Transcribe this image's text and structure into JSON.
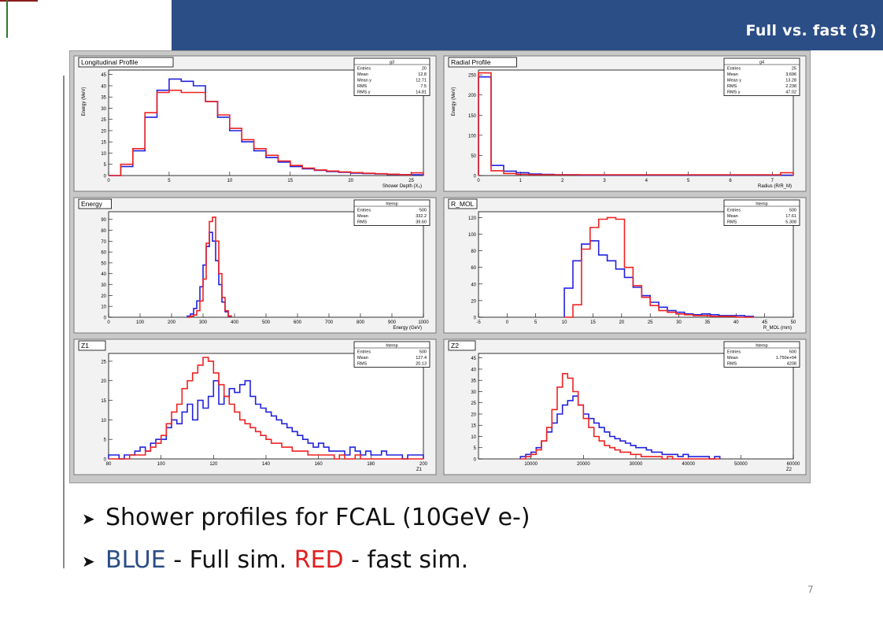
{
  "header": {
    "title": "Full vs. fast (3)"
  },
  "bullets": [
    {
      "text": "Shower profiles for FCAL (10GeV e-)"
    },
    {
      "parts": [
        {
          "text": "BLUE",
          "style": "blue"
        },
        {
          "text": " - Full sim. ",
          "style": "plain"
        },
        {
          "text": "RED",
          "style": "red"
        },
        {
          "text": " - fast sim.",
          "style": "plain"
        }
      ]
    }
  ],
  "slide_number": "7",
  "colors": {
    "full_sim": "#2222dd",
    "fast_sim": "#ee2222",
    "header": "#2b4e86"
  },
  "chart_data": [
    {
      "type": "line",
      "title": "Longitudinal Profile",
      "xlabel": "Shower Depth (X₀)",
      "ylabel": "Energy (MeV)",
      "xlim": [
        0,
        26
      ],
      "ylim": [
        0,
        47
      ],
      "xticks": [
        0,
        5,
        10,
        15,
        20,
        25
      ],
      "yticks": [
        0,
        5,
        10,
        15,
        20,
        25,
        30,
        35,
        40,
        45
      ],
      "stats": {
        "name": "g3",
        "rows": [
          [
            "Entries",
            "20"
          ],
          [
            "Mean",
            "12.8"
          ],
          [
            "Mean y",
            "12.71"
          ],
          [
            "RMS",
            "7.5"
          ],
          [
            "RMS y",
            "14.81"
          ]
        ]
      },
      "x_edges": [
        0,
        1,
        2,
        3,
        4,
        5,
        6,
        7,
        8,
        9,
        10,
        11,
        12,
        13,
        14,
        15,
        16,
        17,
        18,
        19,
        20,
        21,
        22,
        23,
        24,
        25,
        26
      ],
      "series": [
        {
          "name": "Full sim",
          "color": "#2222dd",
          "values": [
            0,
            4,
            11,
            26,
            38,
            43,
            42,
            40,
            33,
            26,
            20,
            15,
            11,
            8,
            6,
            4,
            3,
            2.3,
            1.8,
            1.4,
            1.1,
            0.9,
            0.7,
            0.5,
            0.4,
            0.3
          ]
        },
        {
          "name": "Fast sim",
          "color": "#ee2222",
          "values": [
            0,
            5,
            12,
            28,
            37,
            38,
            37,
            37,
            33,
            27,
            21,
            16,
            12,
            9,
            6.5,
            4.5,
            3.3,
            2.5,
            2,
            1.6,
            1.3,
            1,
            0.8,
            0.6,
            0.4,
            1.2
          ]
        }
      ]
    },
    {
      "type": "line",
      "title": "Radial Profile",
      "xlabel": "Radius (R/R_M)",
      "ylabel": "Energy (MeV)",
      "xlim": [
        0,
        7.5
      ],
      "ylim": [
        0,
        262
      ],
      "xticks": [
        0,
        1,
        2,
        3,
        4,
        5,
        6,
        7
      ],
      "yticks": [
        0,
        50,
        100,
        150,
        200,
        250
      ],
      "stats": {
        "name": "g4",
        "rows": [
          [
            "Entries",
            "25"
          ],
          [
            "Mean",
            "3.696"
          ],
          [
            "Mean y",
            "13.28"
          ],
          [
            "RMS",
            "2.238"
          ],
          [
            "RMS y",
            "47.02"
          ]
        ]
      },
      "x_edges": [
        0,
        0.3,
        0.6,
        0.9,
        1.2,
        1.5,
        1.8,
        2.1,
        2.4,
        2.7,
        3.0,
        3.3,
        3.6,
        3.9,
        4.2,
        4.5,
        4.8,
        5.1,
        5.4,
        5.7,
        6.0,
        6.3,
        6.6,
        6.9,
        7.2,
        7.5
      ],
      "series": [
        {
          "name": "Full sim",
          "color": "#2222dd",
          "values": [
            245,
            25,
            11,
            7,
            4,
            3,
            2,
            2,
            1,
            1,
            1,
            1,
            1,
            1,
            1,
            1,
            1,
            1,
            1,
            1,
            1,
            1,
            1,
            1,
            1
          ]
        },
        {
          "name": "Fast sim",
          "color": "#ee2222",
          "values": [
            255,
            12,
            5,
            3,
            2,
            2,
            2,
            2,
            2,
            2,
            2,
            2,
            2,
            2,
            2,
            2,
            2,
            2,
            2,
            2,
            2,
            2,
            2,
            2,
            7
          ]
        }
      ]
    },
    {
      "type": "line",
      "title": "Energy",
      "xlabel": "Energy (GeV)",
      "ylabel": "",
      "xlim": [
        0,
        1000
      ],
      "ylim": [
        0,
        97
      ],
      "xticks": [
        0,
        100,
        200,
        300,
        400,
        500,
        600,
        700,
        800,
        900,
        1000
      ],
      "yticks": [
        0,
        10,
        20,
        30,
        40,
        50,
        60,
        70,
        80,
        90
      ],
      "stats": {
        "name": "htemp",
        "rows": [
          [
            "Entries",
            "500"
          ],
          [
            "Mean",
            "332.2"
          ],
          [
            "RMS",
            "39.60"
          ]
        ]
      },
      "x_edges": [
        250,
        260,
        270,
        280,
        290,
        300,
        310,
        320,
        330,
        340,
        350,
        360,
        370,
        380,
        390
      ],
      "series": [
        {
          "name": "Full sim",
          "color": "#2222dd",
          "values": [
            1,
            3,
            8,
            15,
            28,
            48,
            65,
            78,
            70,
            52,
            30,
            14,
            5,
            1
          ]
        },
        {
          "name": "Fast sim",
          "color": "#ee2222",
          "values": [
            0,
            1,
            2,
            6,
            15,
            35,
            68,
            88,
            92,
            70,
            40,
            18,
            6,
            1
          ]
        }
      ]
    },
    {
      "type": "line",
      "title": "R_MOL",
      "xlabel": "R_MOL (mm)",
      "ylabel": "",
      "xlim": [
        -5,
        50
      ],
      "ylim": [
        0,
        127
      ],
      "xticks": [
        -5,
        0,
        5,
        10,
        15,
        20,
        25,
        30,
        35,
        40,
        45,
        50
      ],
      "yticks": [
        0,
        20,
        40,
        60,
        80,
        100,
        120
      ],
      "stats": {
        "name": "htemp",
        "rows": [
          [
            "Entries",
            "500"
          ],
          [
            "Mean",
            "17.61"
          ],
          [
            "RMS",
            "5.308"
          ]
        ]
      },
      "x_edges": [
        10,
        11.5,
        13,
        14.5,
        16,
        17.5,
        19,
        20.5,
        22,
        23.5,
        25,
        26.5,
        28,
        29.5,
        31,
        32.5,
        34,
        35.5,
        37,
        38.5,
        40,
        41.5,
        43
      ],
      "series": [
        {
          "name": "Full sim",
          "color": "#2222dd",
          "values": [
            35,
            68,
            88,
            92,
            75,
            68,
            58,
            48,
            36,
            26,
            18,
            12,
            8,
            6,
            4,
            3,
            4,
            3,
            2,
            2,
            2,
            1
          ]
        },
        {
          "name": "Fast sim",
          "color": "#ee2222",
          "values": [
            0,
            15,
            82,
            108,
            118,
            120,
            118,
            60,
            38,
            24,
            14,
            8,
            6,
            4,
            3,
            2,
            2,
            1,
            1,
            1,
            0,
            0
          ]
        }
      ]
    },
    {
      "type": "line",
      "title": "Z1",
      "xlabel": "Z1",
      "ylabel": "",
      "xlim": [
        80,
        200
      ],
      "ylim": [
        0,
        27
      ],
      "xticks": [
        80,
        100,
        120,
        140,
        160,
        180,
        200
      ],
      "yticks": [
        0,
        5,
        10,
        15,
        20,
        25
      ],
      "stats": {
        "name": "htemp",
        "rows": [
          [
            "Entries",
            "500"
          ],
          [
            "Mean",
            "127.4"
          ],
          [
            "RMS",
            "20.13"
          ]
        ]
      },
      "x_edges": [
        80,
        82,
        84,
        86,
        88,
        90,
        92,
        94,
        96,
        98,
        100,
        102,
        104,
        106,
        108,
        110,
        112,
        114,
        116,
        118,
        120,
        122,
        124,
        126,
        128,
        130,
        132,
        134,
        136,
        138,
        140,
        142,
        144,
        146,
        148,
        150,
        152,
        154,
        156,
        158,
        160,
        162,
        164,
        166,
        168,
        170,
        172,
        174,
        176,
        178,
        180,
        182,
        184,
        186,
        188,
        190,
        192,
        194,
        196,
        198,
        200
      ],
      "series": [
        {
          "name": "Full sim",
          "color": "#2222dd",
          "values": [
            1,
            1,
            0,
            1,
            1,
            2,
            3,
            2,
            4,
            5,
            5,
            8,
            10,
            9,
            12,
            14,
            10,
            15,
            13,
            16,
            20,
            14,
            16,
            18,
            17,
            19,
            20,
            16,
            14,
            13,
            12,
            11,
            10,
            9,
            8,
            7,
            6,
            5,
            4,
            3,
            4,
            3,
            2,
            2,
            2,
            1,
            3,
            2,
            1,
            2,
            1,
            1,
            2,
            1,
            1,
            1,
            0,
            1,
            1,
            1
          ]
        },
        {
          "name": "Fast sim",
          "color": "#ee2222",
          "values": [
            0,
            0,
            0,
            0,
            1,
            1,
            1,
            2,
            3,
            4,
            6,
            9,
            12,
            14,
            18,
            20,
            22,
            24,
            26,
            25,
            22,
            19,
            16,
            14,
            12,
            10,
            9,
            8,
            7,
            6,
            5,
            4,
            4,
            3,
            3,
            2,
            2,
            2,
            1,
            1,
            1,
            1,
            1,
            0,
            1,
            0,
            0,
            1,
            0,
            0,
            0,
            0,
            0,
            0,
            0,
            0,
            0,
            0,
            0,
            0
          ]
        }
      ]
    },
    {
      "type": "line",
      "title": "Z2",
      "xlabel": "Z2",
      "ylabel": "",
      "xlim": [
        0,
        60000
      ],
      "ylim": [
        0,
        47
      ],
      "xticks": [
        10000,
        20000,
        30000,
        40000,
        50000,
        60000
      ],
      "yticks": [
        0,
        5,
        10,
        15,
        20,
        25,
        30,
        35,
        40,
        45
      ],
      "stats": {
        "name": "htemp",
        "rows": [
          [
            "Entries",
            "500"
          ],
          [
            "Mean",
            "1.750e+04"
          ],
          [
            "RMS",
            "4208"
          ]
        ]
      },
      "x_edges": [
        8000,
        9000,
        10000,
        11000,
        12000,
        13000,
        14000,
        15000,
        16000,
        17000,
        18000,
        19000,
        20000,
        21000,
        22000,
        23000,
        24000,
        25000,
        26000,
        27000,
        28000,
        29000,
        30000,
        31000,
        32000,
        33000,
        34000,
        35000,
        36000,
        37000,
        38000,
        39000,
        40000,
        41000,
        42000,
        43000,
        44000,
        45000,
        46000
      ],
      "series": [
        {
          "name": "Full sim",
          "color": "#2222dd",
          "values": [
            1,
            2,
            3,
            5,
            8,
            12,
            16,
            20,
            24,
            26,
            28,
            24,
            20,
            18,
            16,
            14,
            12,
            10,
            9,
            8,
            7,
            6,
            5,
            5,
            4,
            3,
            3,
            2,
            2,
            2,
            1,
            2,
            1,
            1,
            1,
            1,
            0,
            1
          ]
        },
        {
          "name": "Fast sim",
          "color": "#ee2222",
          "values": [
            0,
            1,
            2,
            4,
            8,
            14,
            22,
            32,
            38,
            36,
            30,
            24,
            18,
            14,
            10,
            8,
            6,
            5,
            4,
            3,
            3,
            2,
            2,
            1,
            1,
            1,
            1,
            0,
            1,
            0,
            0,
            0,
            0,
            0,
            0,
            0,
            0,
            0
          ]
        }
      ]
    }
  ]
}
